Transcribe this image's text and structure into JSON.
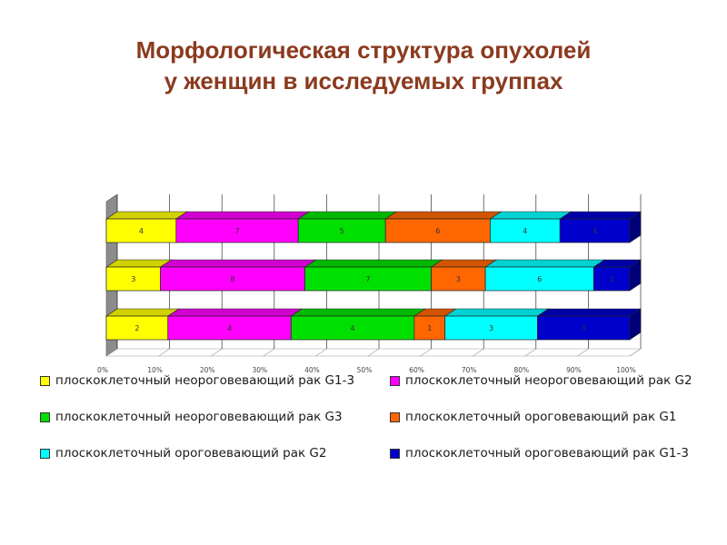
{
  "title": {
    "line1": "Морфологическая структура опухолей",
    "line2": "у женщин в исследуемых группах"
  },
  "chart_data": {
    "type": "bar",
    "orientation": "horizontal",
    "stacking": "percent",
    "three_d": true,
    "xlim": [
      0,
      100
    ],
    "x_ticks": [
      "0%",
      "10%",
      "20%",
      "30%",
      "40%",
      "50%",
      "60%",
      "70%",
      "80%",
      "90%",
      "100%"
    ],
    "rows": 3,
    "series": [
      {
        "name": "плоскоклеточный неороговевающий рак G1-3",
        "color": "#ffff00",
        "values": [
          4,
          3,
          2
        ]
      },
      {
        "name": "плоскоклеточный неороговевающий рак G2",
        "color": "#ff00ff",
        "values": [
          7,
          8,
          4
        ]
      },
      {
        "name": "плоскоклеточный неороговевающий рак G3",
        "color": "#00e000",
        "values": [
          5,
          7,
          4
        ]
      },
      {
        "name": "плоскоклеточный ороговевающий рак G1",
        "color": "#ff6600",
        "values": [
          6,
          3,
          1
        ]
      },
      {
        "name": "плоскоклеточный ороговевающий рак G2",
        "color": "#00ffff",
        "values": [
          4,
          6,
          3
        ]
      },
      {
        "name": "плоскоклеточный ороговевающий рак G1-3",
        "color": "#0000cc",
        "values": [
          4,
          2,
          3
        ]
      }
    ],
    "gridlines": true,
    "legend_position": "bottom"
  }
}
